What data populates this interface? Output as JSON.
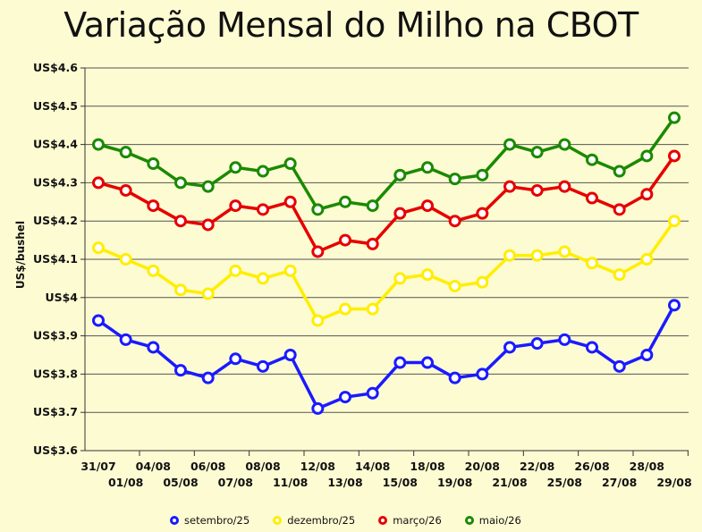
{
  "chart_data": {
    "type": "line",
    "title": "Variação Mensal do Milho na CBOT",
    "xlabel": "",
    "ylabel": "US$/bushel",
    "ylim": [
      3.6,
      4.6
    ],
    "ytick_values": [
      3.6,
      3.7,
      3.8,
      3.9,
      4.0,
      4.1,
      4.2,
      4.3,
      4.4,
      4.5,
      4.6
    ],
    "ytick_labels": [
      "US$3.6",
      "US$3.7",
      "US$3.8",
      "US$3.9",
      "US$4",
      "US$4.1",
      "US$4.2",
      "US$4.3",
      "US$4.4",
      "US$4.5",
      "US$4.6"
    ],
    "grid": "horizontal",
    "legend_position": "bottom",
    "categories": [
      "31/07",
      "01/08",
      "04/08",
      "05/08",
      "06/08",
      "07/08",
      "08/08",
      "11/08",
      "12/08",
      "13/08",
      "14/08",
      "15/08",
      "18/08",
      "19/08",
      "20/08",
      "21/08",
      "22/08",
      "25/08",
      "26/08",
      "27/08",
      "28/08",
      "29/08"
    ],
    "series": [
      {
        "name": "setembro/25",
        "color": "#1a1aff",
        "values": [
          3.94,
          3.89,
          3.87,
          3.81,
          3.79,
          3.84,
          3.82,
          3.85,
          3.71,
          3.74,
          3.75,
          3.83,
          3.83,
          3.79,
          3.8,
          3.87,
          3.88,
          3.89,
          3.87,
          3.82,
          3.85,
          3.98
        ]
      },
      {
        "name": "dezembro/25",
        "color": "#ffee00",
        "values": [
          4.13,
          4.1,
          4.07,
          4.02,
          4.01,
          4.07,
          4.05,
          4.07,
          3.94,
          3.97,
          3.97,
          4.05,
          4.06,
          4.03,
          4.04,
          4.11,
          4.11,
          4.12,
          4.09,
          4.06,
          4.1,
          4.2
        ]
      },
      {
        "name": "março/26",
        "color": "#e60000",
        "values": [
          4.3,
          4.28,
          4.24,
          4.2,
          4.19,
          4.24,
          4.23,
          4.25,
          4.12,
          4.15,
          4.14,
          4.22,
          4.24,
          4.2,
          4.22,
          4.29,
          4.28,
          4.29,
          4.26,
          4.23,
          4.27,
          4.37
        ]
      },
      {
        "name": "maio/26",
        "color": "#1a8a00",
        "values": [
          4.4,
          4.38,
          4.35,
          4.3,
          4.29,
          4.34,
          4.33,
          4.35,
          4.23,
          4.25,
          4.24,
          4.32,
          4.34,
          4.31,
          4.32,
          4.4,
          4.38,
          4.4,
          4.36,
          4.33,
          4.37,
          4.47
        ]
      }
    ]
  }
}
